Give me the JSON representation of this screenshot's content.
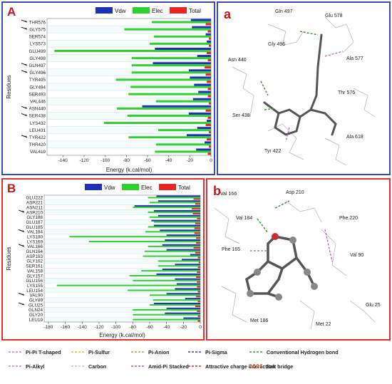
{
  "colors": {
    "vdw": "#1f2fb8",
    "elec": "#2fd12f",
    "total": "#e8261f",
    "panel_top": "#3a4ea8",
    "panel_bottom": "#e03030"
  },
  "chart_data": [
    {
      "type": "bar",
      "orientation": "horizontal",
      "panel_label": "A",
      "xlabel": "Energy (k.cal/mol)",
      "ylabel": "Residues",
      "xlim": [
        -155,
        0
      ],
      "xticks": [
        -140,
        -120,
        -100,
        -80,
        -60,
        -40,
        -20,
        0
      ],
      "legend": [
        "Vdw",
        "Elec",
        "Total"
      ],
      "legend_position": "top-right",
      "categories": [
        "THR576",
        "GLY575",
        "SER574",
        "LYS573",
        "GLU499",
        "GLY498",
        "GLN497",
        "GLY496",
        "TYR495",
        "GLY494",
        "SER493",
        "VAL446",
        "ASN440",
        "SER438",
        "LYS432",
        "LEU431",
        "TYR422",
        "THR420",
        "VAL419"
      ],
      "marked": [
        "THR576",
        "GLY575",
        "GLN497",
        "GLY496",
        "ASN440",
        "SER438",
        "TYR422"
      ],
      "series": [
        {
          "name": "Vdw",
          "values": [
            -19,
            -18,
            -5,
            -4,
            -53,
            -13,
            -55,
            -21,
            -20,
            -16,
            -12,
            -17,
            -65,
            -21,
            -4,
            -13,
            -23,
            -6,
            -14
          ]
        },
        {
          "name": "Elec",
          "values": [
            -56,
            -82,
            -54,
            -58,
            -148,
            -75,
            -75,
            -75,
            -90,
            -76,
            -78,
            -52,
            -89,
            -79,
            -101,
            -50,
            -78,
            -52,
            -53
          ]
        },
        {
          "name": "Total",
          "values": [
            -5,
            -3,
            -2,
            -2,
            -4,
            -3,
            -6,
            -5,
            -4,
            -3,
            -3,
            -2,
            -5,
            -3,
            -5,
            -2,
            -4,
            -2,
            -3
          ]
        }
      ]
    },
    {
      "type": "bar",
      "orientation": "horizontal",
      "panel_label": "B",
      "xlabel": "Energy (k.cal/mol)",
      "ylabel": "Residues",
      "xlim": [
        -185,
        0
      ],
      "xticks": [
        -180,
        -160,
        -140,
        -120,
        -100,
        -80,
        -60,
        -40,
        -20,
        0
      ],
      "legend": [
        "Vdw",
        "Elec",
        "Total"
      ],
      "legend_position": "top-right",
      "categories": [
        "GLU222",
        "ASP221",
        "ASN211",
        "ASP210",
        "GLY188",
        "GLU187",
        "GLU185",
        "VAL184",
        "LYS180",
        "LYS169",
        "VAL166",
        "GLN164",
        "ASP163",
        "GLY162",
        "SER161",
        "VAL158",
        "GLY157",
        "GLU156",
        "LYS155",
        "LEU154",
        "VAL90",
        "GLY89",
        "GLU25",
        "GLN24",
        "GLY20",
        "LEU19"
      ],
      "marked": [
        "ASP210",
        "VAL184",
        "VAL166",
        "VAL90",
        "GLU25"
      ],
      "series": [
        {
          "name": "Vdw",
          "values": [
            -52,
            -50,
            -78,
            -55,
            -50,
            -58,
            -55,
            -48,
            -40,
            -42,
            -45,
            -40,
            -12,
            -22,
            -30,
            -45,
            -52,
            -30,
            -28,
            -30,
            -40,
            -18,
            -55,
            -40,
            -42,
            -20
          ]
        },
        {
          "name": "Elec",
          "values": [
            -62,
            -60,
            -80,
            -62,
            -60,
            -55,
            -62,
            -65,
            -155,
            -132,
            -62,
            -66,
            -68,
            -50,
            -50,
            -70,
            -84,
            -80,
            -170,
            -86,
            -60,
            -56,
            -60,
            -80,
            -80,
            -80
          ]
        },
        {
          "name": "Total",
          "values": [
            -8,
            -6,
            -10,
            -9,
            -4,
            -6,
            -7,
            -7,
            -5,
            -5,
            -8,
            -6,
            -3,
            -2,
            -3,
            -4,
            -5,
            -4,
            -4,
            -3,
            -5,
            -3,
            -6,
            -4,
            -3,
            -3
          ]
        }
      ]
    }
  ],
  "panel_a": {
    "label": "a",
    "residues": [
      "Gln 497",
      "Glu 578",
      "Gly 496",
      "Asn 440",
      "Ala 577",
      "Thr 576",
      "Ser 438",
      "Tyr 422",
      "Ala 618"
    ]
  },
  "panel_b": {
    "label": "b",
    "residues": [
      "Val 166",
      "Asp 210",
      "Val 184",
      "Phe 220",
      "Phe 165",
      "Val 90",
      "Met 186",
      "Glu 25",
      "Met 22"
    ]
  },
  "interaction_legend": [
    {
      "label": "Pi-Pi T-shaped",
      "color": "#e070e0",
      "style": "dash"
    },
    {
      "label": "Pi-Sulfur",
      "color": "#e8c020",
      "style": "dash"
    },
    {
      "label": "Pi-Anion",
      "color": "#e89020",
      "style": "dash"
    },
    {
      "label": "Pi-Sigma",
      "color": "#6030b0",
      "style": "dash"
    },
    {
      "label": "Conventional Hydrogen bond",
      "color": "#30a030",
      "style": "dash"
    },
    {
      "label": "Pi-Alkyl",
      "color": "#d080c0",
      "style": "dash"
    },
    {
      "label": "Carbon",
      "color": "#a8d8a0",
      "style": "dash"
    },
    {
      "label": "Amid-Pi Stacked",
      "color": "#b050d0",
      "style": "dash"
    },
    {
      "label": "Attractive charge interaction",
      "color": "#e0301a",
      "style": "dash"
    },
    {
      "label": "Salt bridge",
      "color": "#e0a040",
      "style": "double"
    }
  ]
}
